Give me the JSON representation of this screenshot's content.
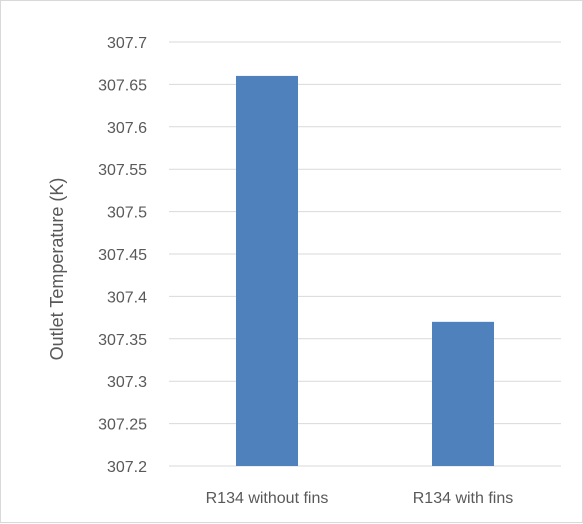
{
  "chart_data": {
    "type": "bar",
    "title": "",
    "xlabel": "",
    "ylabel": "Outlet Temperature (K)",
    "categories": [
      "R134 without fins",
      "R134 with fins"
    ],
    "values": [
      307.66,
      307.37
    ],
    "ylim": [
      307.2,
      307.7
    ],
    "yticks": [
      "307.2",
      "307.25",
      "307.3",
      "307.35",
      "307.4",
      "307.45",
      "307.5",
      "307.55",
      "307.6",
      "307.65",
      "307.7"
    ],
    "grid": true,
    "legend": "none",
    "bar_color": "#4f81bd",
    "grid_color": "#d9d9d9"
  }
}
